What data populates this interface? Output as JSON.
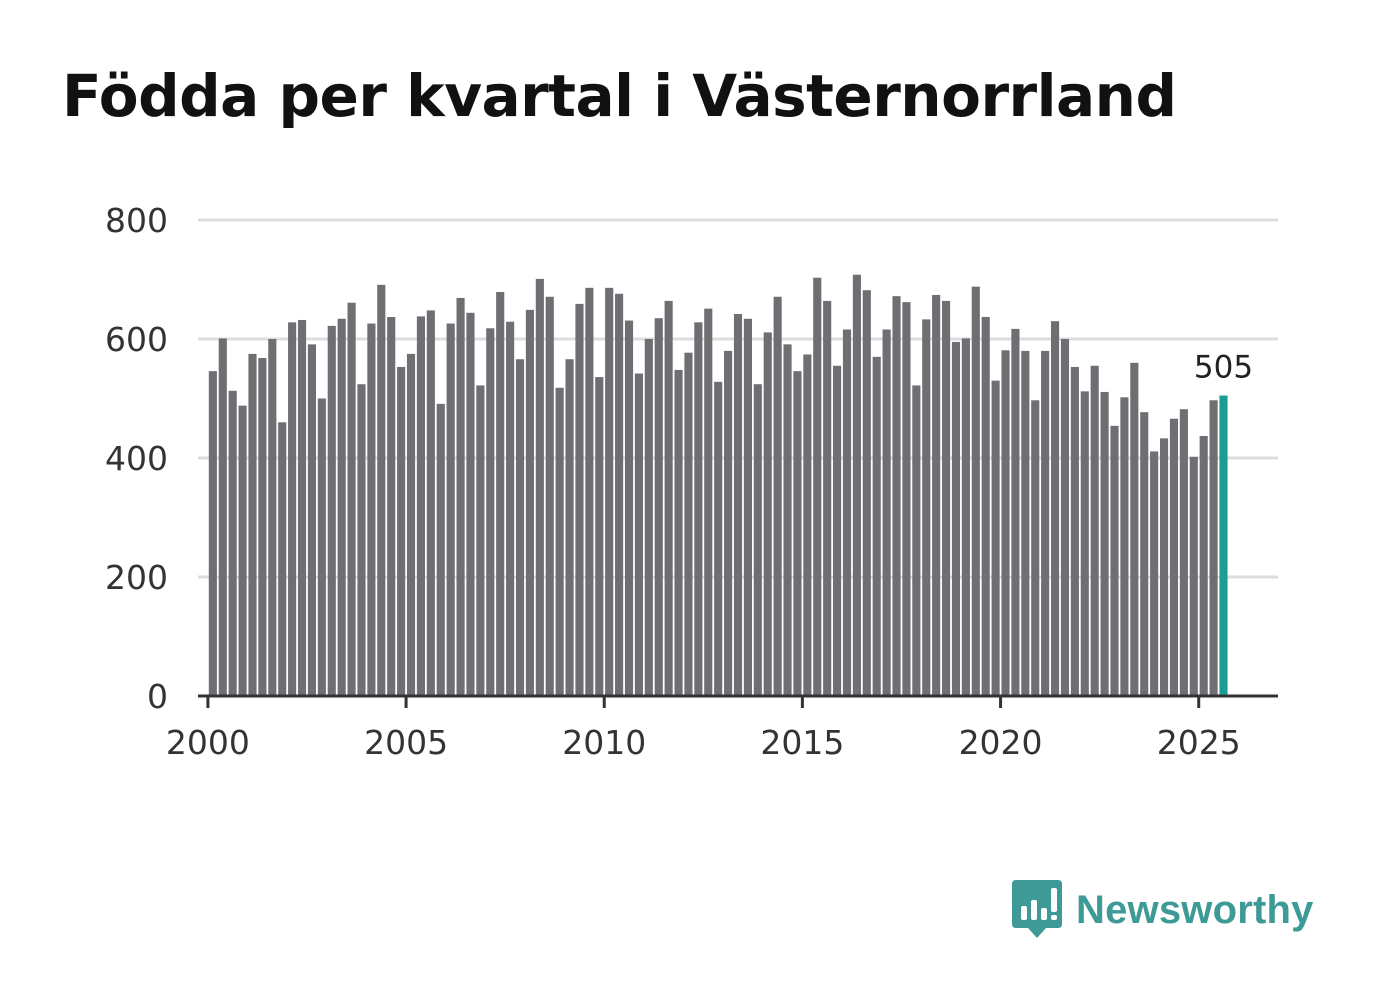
{
  "chart_data": {
    "type": "bar",
    "title": "Födda per kvartal i Västernorrland",
    "xlabel": "",
    "ylabel": "",
    "ylim": [
      0,
      800
    ],
    "xlim": [
      1999.75,
      2027.0
    ],
    "yticks": [
      0,
      200,
      400,
      600,
      800
    ],
    "xticks": [
      2000,
      2005,
      2010,
      2015,
      2020,
      2025
    ],
    "grid": true,
    "start_year": 2000,
    "periods_per_year": 4,
    "values": [
      546,
      601,
      513,
      488,
      575,
      568,
      600,
      460,
      628,
      632,
      591,
      500,
      622,
      634,
      661,
      524,
      626,
      691,
      637,
      553,
      575,
      638,
      648,
      491,
      626,
      669,
      644,
      522,
      618,
      679,
      629,
      566,
      649,
      701,
      671,
      518,
      566,
      659,
      686,
      536,
      686,
      676,
      631,
      542,
      600,
      635,
      664,
      548,
      577,
      628,
      651,
      528,
      580,
      642,
      634,
      524,
      611,
      671,
      591,
      546,
      574,
      703,
      664,
      555,
      616,
      708,
      682,
      570,
      616,
      672,
      662,
      522,
      633,
      674,
      664,
      595,
      601,
      688,
      637,
      530,
      581,
      617,
      580,
      497,
      580,
      630,
      600,
      553,
      512,
      555,
      511,
      454,
      502,
      560,
      477,
      411,
      433,
      466,
      482,
      402,
      437,
      497,
      505
    ],
    "highlight": {
      "index": 102,
      "label": "505",
      "color": "#1a9e94"
    },
    "bar_color": "#6e6e73"
  },
  "brand": {
    "name": "Newsworthy",
    "color": "#3e9a96"
  }
}
